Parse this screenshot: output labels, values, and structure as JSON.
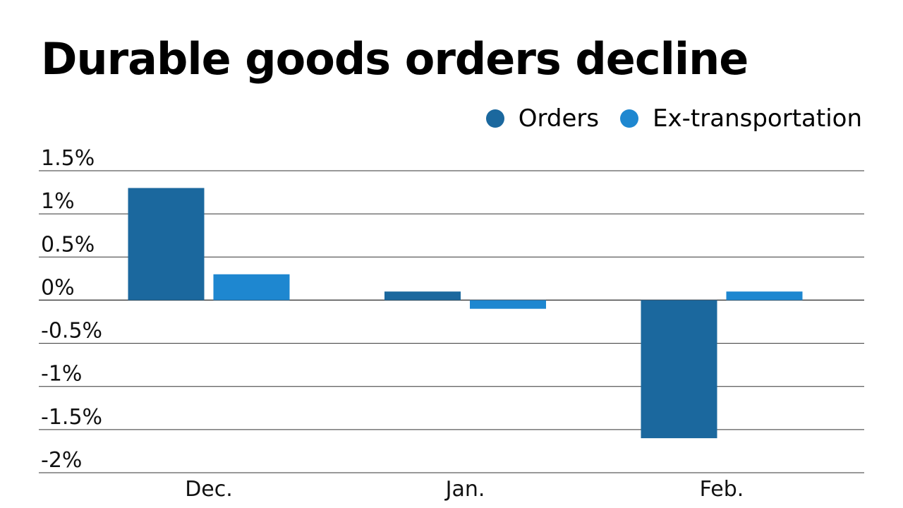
{
  "chart_data": {
    "type": "bar",
    "title": "Durable goods orders decline",
    "categories": [
      "Dec.",
      "Jan.",
      "Feb."
    ],
    "series": [
      {
        "name": "Orders",
        "color": "#1b689e",
        "values": [
          1.3,
          0.1,
          -1.6
        ]
      },
      {
        "name": "Ex-transportation",
        "color": "#1e87d0",
        "values": [
          0.3,
          -0.1,
          0.1
        ]
      }
    ],
    "ylim": [
      -2,
      1.5
    ],
    "yticks": [
      1.5,
      1,
      0.5,
      0,
      -0.5,
      -1,
      -1.5,
      -2
    ],
    "ytick_labels": [
      "1.5%",
      "1%",
      "0.5%",
      "0%",
      "-0.5%",
      "-1%",
      "-1.5%",
      "-2%"
    ],
    "grid": true,
    "legend": "top-right",
    "xlabel": "",
    "ylabel": ""
  }
}
